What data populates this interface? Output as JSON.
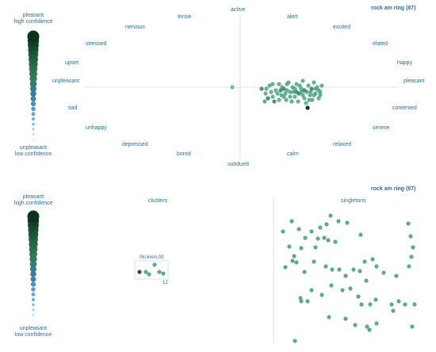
{
  "top": {
    "title": "rock am ring (87)",
    "legend": {
      "top_line1": "pleasant",
      "top_line2": "high confidence",
      "bottom_line1": "unpleasant",
      "bottom_line2": "low confidence"
    },
    "mood_labels": {
      "active": "active",
      "alert": "alert",
      "excited": "excited",
      "elated": "elated",
      "happy": "happy",
      "pleasant": "pleasant",
      "contented": "contented",
      "serene": "serene",
      "relaxed": "relaxed",
      "calm": "calm",
      "subdued": "subdued",
      "bored": "bored",
      "depressed": "depressed",
      "unhappy": "unhappy",
      "sad": "sad",
      "unpleasant": "unpleasant",
      "upset": "upset",
      "stressed": "stressed",
      "nervous": "nervous",
      "tense": "tense"
    }
  },
  "bottom": {
    "title": "rock am ring (87)",
    "legend": {
      "top_line1": "pleasant",
      "top_line2": "high confidence",
      "bottom_line1": "unpleasant",
      "bottom_line2": "low confidence"
    },
    "clusters_label": "clusters",
    "singletons_label": "singletons",
    "cluster_name": "06,linkin,03",
    "cluster_count": "12"
  },
  "colors": {
    "label_blue": "#2d6e96",
    "point_green": "#3f9a78",
    "dark_green": "#0b3320",
    "light_blue": "#9ccbed",
    "axis_gray": "#cccccc"
  }
}
